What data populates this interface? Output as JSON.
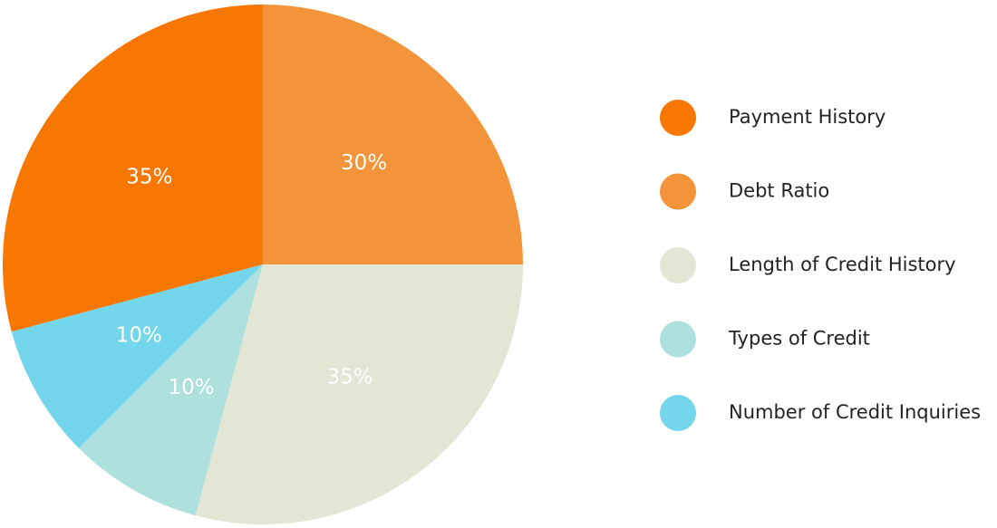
{
  "chart_data": {
    "type": "pie",
    "categories": [
      "Payment History",
      "Debt Ratio",
      "Length of Credit History",
      "Types of Credit",
      "Number of Credit Inquiries"
    ],
    "values": [
      35,
      30,
      35,
      10,
      10
    ],
    "colors": [
      "#f77700",
      "#f4943a",
      "#e3e6d4",
      "#aee0dd",
      "#74d6ea"
    ],
    "value_labels": [
      "35%",
      "30%",
      "35%",
      "10%",
      "10%"
    ],
    "legend": "right"
  }
}
